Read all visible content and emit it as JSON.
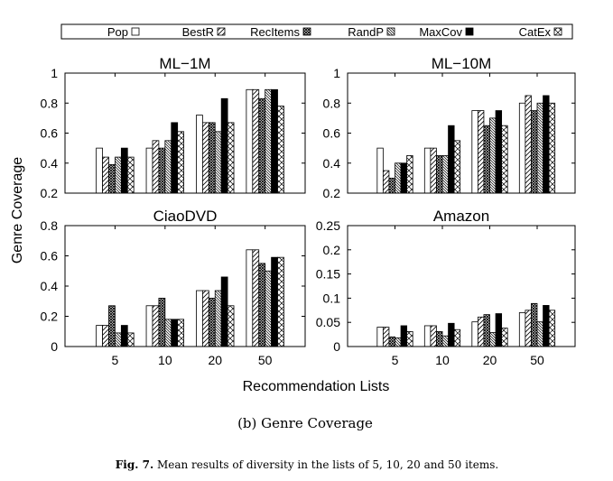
{
  "chart_data": {
    "type": "bar",
    "legend": [
      "Pop",
      "BestR",
      "RecItems",
      "RandP",
      "MaxCov",
      "CatEx"
    ],
    "legend_placement": "top",
    "categories": [
      "5",
      "10",
      "20",
      "50"
    ],
    "xlabel": "Recommendation Lists",
    "ylabel": "Genre Coverage",
    "subcaption": "(b) Genre Coverage",
    "caption_prefix": "Fig. 7.",
    "caption": "Mean results of diversity in the lists of 5, 10, 20 and 50 items.",
    "panels": [
      {
        "title": "ML−1M",
        "ylim": [
          0.2,
          1
        ],
        "yticks": [
          "0.2",
          "0.4",
          "0.6",
          "0.8",
          "1"
        ],
        "ytick_values": [
          0.2,
          0.4,
          0.6,
          0.8,
          1
        ],
        "show_xticks": false,
        "series": [
          {
            "name": "Pop",
            "values": [
              0.5,
              0.5,
              0.72,
              0.89
            ]
          },
          {
            "name": "BestR",
            "values": [
              0.44,
              0.55,
              0.67,
              0.89
            ]
          },
          {
            "name": "RecItems",
            "values": [
              0.39,
              0.5,
              0.67,
              0.83
            ]
          },
          {
            "name": "RandP",
            "values": [
              0.44,
              0.55,
              0.61,
              0.89
            ]
          },
          {
            "name": "MaxCov",
            "values": [
              0.5,
              0.67,
              0.83,
              0.89
            ]
          },
          {
            "name": "CatEx",
            "values": [
              0.44,
              0.61,
              0.67,
              0.78
            ]
          }
        ]
      },
      {
        "title": "ML−10M",
        "ylim": [
          0.2,
          1
        ],
        "yticks": [
          "0.2",
          "0.4",
          "0.6",
          "0.8",
          "1"
        ],
        "ytick_values": [
          0.2,
          0.4,
          0.6,
          0.8,
          1
        ],
        "show_xticks": false,
        "series": [
          {
            "name": "Pop",
            "values": [
              0.5,
              0.5,
              0.75,
              0.8
            ]
          },
          {
            "name": "BestR",
            "values": [
              0.35,
              0.5,
              0.75,
              0.85
            ]
          },
          {
            "name": "RecItems",
            "values": [
              0.3,
              0.45,
              0.65,
              0.75
            ]
          },
          {
            "name": "RandP",
            "values": [
              0.4,
              0.45,
              0.7,
              0.8
            ]
          },
          {
            "name": "MaxCov",
            "values": [
              0.4,
              0.65,
              0.75,
              0.85
            ]
          },
          {
            "name": "CatEx",
            "values": [
              0.45,
              0.55,
              0.65,
              0.8
            ]
          }
        ]
      },
      {
        "title": "CiaoDVD",
        "ylim": [
          0,
          0.8
        ],
        "yticks": [
          "0",
          "0.2",
          "0.4",
          "0.6",
          "0.8"
        ],
        "ytick_values": [
          0,
          0.2,
          0.4,
          0.6,
          0.8
        ],
        "show_xticks": true,
        "series": [
          {
            "name": "Pop",
            "values": [
              0.14,
              0.27,
              0.37,
              0.64
            ]
          },
          {
            "name": "BestR",
            "values": [
              0.14,
              0.27,
              0.37,
              0.64
            ]
          },
          {
            "name": "RecItems",
            "values": [
              0.27,
              0.32,
              0.32,
              0.55
            ]
          },
          {
            "name": "RandP",
            "values": [
              0.09,
              0.18,
              0.37,
              0.5
            ]
          },
          {
            "name": "MaxCov",
            "values": [
              0.14,
              0.18,
              0.46,
              0.59
            ]
          },
          {
            "name": "CatEx",
            "values": [
              0.09,
              0.18,
              0.27,
              0.59
            ]
          }
        ]
      },
      {
        "title": "Amazon",
        "ylim": [
          0,
          0.25
        ],
        "yticks": [
          "0",
          "0.05",
          "0.1",
          "0.15",
          "0.2",
          "0.25"
        ],
        "ytick_values": [
          0,
          0.05,
          0.1,
          0.15,
          0.2,
          0.25
        ],
        "show_xticks": true,
        "series": [
          {
            "name": "Pop",
            "values": [
              0.04,
              0.043,
              0.051,
              0.07
            ]
          },
          {
            "name": "BestR",
            "values": [
              0.04,
              0.043,
              0.061,
              0.075
            ]
          },
          {
            "name": "RecItems",
            "values": [
              0.02,
              0.031,
              0.066,
              0.089
            ]
          },
          {
            "name": "RandP",
            "values": [
              0.018,
              0.022,
              0.029,
              0.051
            ]
          },
          {
            "name": "MaxCov",
            "values": [
              0.043,
              0.048,
              0.068,
              0.085
            ]
          },
          {
            "name": "CatEx",
            "values": [
              0.031,
              0.035,
              0.038,
              0.075
            ]
          }
        ]
      }
    ]
  }
}
